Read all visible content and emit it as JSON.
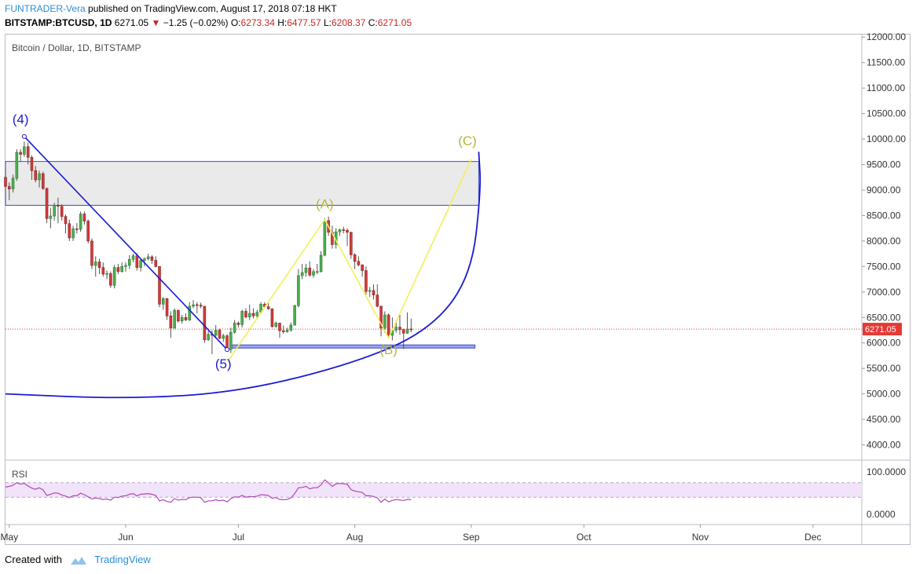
{
  "header": {
    "author": "FUNTRADER-Vera",
    "published": "published on TradingView.com, August 17, 2018 07:18 HKT",
    "symbol": "BITSTAMP:BTCUSD, 1D",
    "last": "6271.05",
    "change": "−1.25 (−0.02%)",
    "o_label": "O:",
    "o_value": "6273.34",
    "h_label": "H:",
    "h_value": "6477.57",
    "l_label": "L:",
    "l_value": "6208.37",
    "c_label": "C:",
    "c_value": "6271.05"
  },
  "pane_title": "Bitcoin / Dollar, 1D, BITSTAMP",
  "rsi_label": "RSI",
  "footer": {
    "created_with": "Created with",
    "brand": "TradingView"
  },
  "colors": {
    "up": "#4caf50",
    "down": "#d03c3c",
    "wick": "#555555",
    "zone_fill": "#e8e8e8",
    "zone_border": "#3b4cc8",
    "wave_blue": "#1a1ad6",
    "wave_yellow": "#f2ef5a",
    "label_yellow": "#b5b53a",
    "rsi_line": "#b04ab5",
    "rsi_band": "#f1e3fa",
    "price_tag": "#e53935"
  },
  "chart_data": {
    "type": "candlestick",
    "title": "Bitcoin / Dollar, 1D, BITSTAMP",
    "y_ticks": [
      "12000.00",
      "11500.00",
      "11000.00",
      "10500.00",
      "10000.00",
      "9500.00",
      "9000.00",
      "8500.00",
      "8000.00",
      "7500.00",
      "7000.00",
      "6500.00",
      "6000.00",
      "5500.00",
      "5000.00",
      "4500.00",
      "4000.00"
    ],
    "ylim": [
      3700,
      12050
    ],
    "x_ticks": [
      "May",
      "Jun",
      "Jul",
      "Aug",
      "Sep",
      "Oct",
      "Nov",
      "Dec"
    ],
    "x_tick_dates": [
      "2018-05-01",
      "2018-06-01",
      "2018-07-01",
      "2018-08-01",
      "2018-09-01",
      "2018-10-01",
      "2018-11-01",
      "2018-12-01"
    ],
    "xlim_dates": [
      "2018-04-30",
      "2018-12-14"
    ],
    "last_price": 6271.05,
    "candles": [
      [
        "2018-04-30",
        9250,
        9400,
        8900,
        9070
      ],
      [
        "2018-05-01",
        9070,
        9150,
        8800,
        9020
      ],
      [
        "2018-05-02",
        9020,
        9300,
        8950,
        9230
      ],
      [
        "2018-05-03",
        9230,
        9800,
        9180,
        9740
      ],
      [
        "2018-05-04",
        9740,
        9800,
        9550,
        9700
      ],
      [
        "2018-05-05",
        9700,
        9950,
        9650,
        9850
      ],
      [
        "2018-05-06",
        9850,
        9930,
        9500,
        9640
      ],
      [
        "2018-05-07",
        9640,
        9680,
        9200,
        9380
      ],
      [
        "2018-05-08",
        9380,
        9470,
        9150,
        9200
      ],
      [
        "2018-05-09",
        9200,
        9380,
        9050,
        9320
      ],
      [
        "2018-05-10",
        9320,
        9360,
        9000,
        9030
      ],
      [
        "2018-05-11",
        9030,
        9050,
        8350,
        8440
      ],
      [
        "2018-05-12",
        8440,
        8650,
        8250,
        8490
      ],
      [
        "2018-05-13",
        8490,
        8750,
        8400,
        8700
      ],
      [
        "2018-05-14",
        8700,
        8850,
        8350,
        8680
      ],
      [
        "2018-05-15",
        8680,
        8720,
        8400,
        8480
      ],
      [
        "2018-05-16",
        8480,
        8520,
        8150,
        8340
      ],
      [
        "2018-05-17",
        8340,
        8420,
        8000,
        8060
      ],
      [
        "2018-05-18",
        8060,
        8300,
        8000,
        8240
      ],
      [
        "2018-05-19",
        8240,
        8350,
        8150,
        8230
      ],
      [
        "2018-05-20",
        8230,
        8580,
        8180,
        8530
      ],
      [
        "2018-05-21",
        8530,
        8580,
        8320,
        8390
      ],
      [
        "2018-05-22",
        8390,
        8420,
        7950,
        8000
      ],
      [
        "2018-05-23",
        8000,
        8050,
        7450,
        7520
      ],
      [
        "2018-05-24",
        7520,
        7700,
        7300,
        7590
      ],
      [
        "2018-05-25",
        7590,
        7650,
        7350,
        7480
      ],
      [
        "2018-05-26",
        7480,
        7580,
        7300,
        7350
      ],
      [
        "2018-05-27",
        7350,
        7420,
        7250,
        7360
      ],
      [
        "2018-05-28",
        7360,
        7400,
        7080,
        7130
      ],
      [
        "2018-05-29",
        7130,
        7530,
        7070,
        7480
      ],
      [
        "2018-05-30",
        7480,
        7550,
        7350,
        7400
      ],
      [
        "2018-05-31",
        7400,
        7580,
        7380,
        7500
      ],
      [
        "2018-06-01",
        7500,
        7580,
        7400,
        7520
      ],
      [
        "2018-06-02",
        7520,
        7720,
        7450,
        7640
      ],
      [
        "2018-06-03",
        7640,
        7750,
        7580,
        7710
      ],
      [
        "2018-06-04",
        7710,
        7760,
        7420,
        7480
      ],
      [
        "2018-06-05",
        7480,
        7660,
        7400,
        7620
      ],
      [
        "2018-06-06",
        7620,
        7680,
        7500,
        7650
      ],
      [
        "2018-06-07",
        7650,
        7750,
        7620,
        7690
      ],
      [
        "2018-06-08",
        7690,
        7720,
        7550,
        7620
      ],
      [
        "2018-06-09",
        7620,
        7700,
        7480,
        7500
      ],
      [
        "2018-06-10",
        7500,
        7500,
        6700,
        6760
      ],
      [
        "2018-06-11",
        6760,
        6900,
        6650,
        6870
      ],
      [
        "2018-06-12",
        6870,
        6880,
        6450,
        6530
      ],
      [
        "2018-06-13",
        6530,
        6620,
        6100,
        6290
      ],
      [
        "2018-06-14",
        6290,
        6680,
        6280,
        6640
      ],
      [
        "2018-06-15",
        6640,
        6650,
        6400,
        6430
      ],
      [
        "2018-06-16",
        6430,
        6550,
        6380,
        6500
      ],
      [
        "2018-06-17",
        6500,
        6580,
        6430,
        6450
      ],
      [
        "2018-06-18",
        6450,
        6800,
        6430,
        6720
      ],
      [
        "2018-06-19",
        6720,
        6840,
        6680,
        6750
      ],
      [
        "2018-06-20",
        6750,
        6800,
        6580,
        6740
      ],
      [
        "2018-06-21",
        6740,
        6790,
        6680,
        6720
      ],
      [
        "2018-06-22",
        6720,
        6720,
        6000,
        6060
      ],
      [
        "2018-06-23",
        6060,
        6230,
        6040,
        6170
      ],
      [
        "2018-06-24",
        6170,
        6250,
        5780,
        6150
      ],
      [
        "2018-06-25",
        6150,
        6350,
        6100,
        6250
      ],
      [
        "2018-06-26",
        6250,
        6280,
        6070,
        6090
      ],
      [
        "2018-06-27",
        6090,
        6180,
        6020,
        6140
      ],
      [
        "2018-06-28",
        6140,
        6170,
        5850,
        5870
      ],
      [
        "2018-06-29",
        5870,
        6300,
        5800,
        6210
      ],
      [
        "2018-06-30",
        6210,
        6450,
        6180,
        6390
      ],
      [
        "2018-07-01",
        6390,
        6420,
        6300,
        6360
      ],
      [
        "2018-07-02",
        6360,
        6650,
        6300,
        6620
      ],
      [
        "2018-07-03",
        6620,
        6680,
        6480,
        6510
      ],
      [
        "2018-07-04",
        6510,
        6750,
        6450,
        6580
      ],
      [
        "2018-07-05",
        6580,
        6680,
        6480,
        6530
      ],
      [
        "2018-07-06",
        6530,
        6650,
        6480,
        6600
      ],
      [
        "2018-07-07",
        6600,
        6800,
        6570,
        6760
      ],
      [
        "2018-07-08",
        6760,
        6800,
        6700,
        6710
      ],
      [
        "2018-07-09",
        6710,
        6780,
        6650,
        6670
      ],
      [
        "2018-07-10",
        6670,
        6680,
        6300,
        6320
      ],
      [
        "2018-07-11",
        6320,
        6420,
        6300,
        6390
      ],
      [
        "2018-07-12",
        6390,
        6390,
        6100,
        6240
      ],
      [
        "2018-07-13",
        6240,
        6340,
        6180,
        6220
      ],
      [
        "2018-07-14",
        6220,
        6300,
        6200,
        6250
      ],
      [
        "2018-07-15",
        6250,
        6400,
        6220,
        6350
      ],
      [
        "2018-07-16",
        6350,
        6750,
        6340,
        6730
      ],
      [
        "2018-07-17",
        6730,
        7450,
        6700,
        7320
      ],
      [
        "2018-07-18",
        7320,
        7550,
        7250,
        7380
      ],
      [
        "2018-07-19",
        7380,
        7550,
        7300,
        7470
      ],
      [
        "2018-07-20",
        7470,
        7600,
        7300,
        7330
      ],
      [
        "2018-07-21",
        7330,
        7450,
        7280,
        7400
      ],
      [
        "2018-07-22",
        7400,
        7550,
        7350,
        7400
      ],
      [
        "2018-07-23",
        7400,
        7800,
        7380,
        7720
      ],
      [
        "2018-07-24",
        7720,
        8450,
        7700,
        8400
      ],
      [
        "2018-07-25",
        8400,
        8480,
        8100,
        8170
      ],
      [
        "2018-07-26",
        8170,
        8300,
        7850,
        7930
      ],
      [
        "2018-07-27",
        7930,
        8250,
        7850,
        8180
      ],
      [
        "2018-07-28",
        8180,
        8240,
        8100,
        8220
      ],
      [
        "2018-07-29",
        8220,
        8280,
        8150,
        8210
      ],
      [
        "2018-07-30",
        8210,
        8250,
        7900,
        8170
      ],
      [
        "2018-07-31",
        8170,
        8180,
        7650,
        7730
      ],
      [
        "2018-08-01",
        7730,
        7760,
        7450,
        7600
      ],
      [
        "2018-08-02",
        7600,
        7700,
        7500,
        7530
      ],
      [
        "2018-08-03",
        7530,
        7540,
        7300,
        7420
      ],
      [
        "2018-08-04",
        7420,
        7500,
        6950,
        7010
      ],
      [
        "2018-08-05",
        7010,
        7100,
        6900,
        7030
      ],
      [
        "2018-08-06",
        7030,
        7150,
        6850,
        6940
      ],
      [
        "2018-08-07",
        6940,
        7150,
        6700,
        6720
      ],
      [
        "2018-08-08",
        6720,
        6730,
        6130,
        6290
      ],
      [
        "2018-08-09",
        6290,
        6620,
        6200,
        6550
      ],
      [
        "2018-08-10",
        6550,
        6580,
        6100,
        6150
      ],
      [
        "2018-08-11",
        6150,
        6500,
        6050,
        6250
      ],
      [
        "2018-08-12",
        6250,
        6450,
        6200,
        6310
      ],
      [
        "2018-08-13",
        6310,
        6550,
        6160,
        6260
      ],
      [
        "2018-08-14",
        6260,
        6280,
        5880,
        6190
      ],
      [
        "2018-08-15",
        6190,
        6600,
        6180,
        6270
      ],
      [
        "2018-08-16",
        6273.34,
        6477.57,
        6208.37,
        6271.05
      ]
    ],
    "rsi": {
      "label": "RSI",
      "ticks": [
        "100.0000",
        "0.0000"
      ],
      "band": [
        30,
        70
      ],
      "values": [
        58,
        60,
        63,
        70,
        66,
        68,
        61,
        55,
        52,
        56,
        50,
        35,
        38,
        42,
        41,
        36,
        33,
        29,
        34,
        34,
        41,
        37,
        31,
        25,
        28,
        26,
        24,
        25,
        22,
        30,
        29,
        33,
        34,
        38,
        40,
        34,
        38,
        39,
        40,
        38,
        35,
        20,
        23,
        18,
        16,
        26,
        22,
        24,
        23,
        29,
        30,
        30,
        29,
        16,
        20,
        20,
        23,
        20,
        22,
        17,
        26,
        31,
        30,
        35,
        30,
        32,
        31,
        33,
        37,
        36,
        35,
        27,
        29,
        24,
        23,
        24,
        28,
        40,
        56,
        57,
        60,
        53,
        56,
        56,
        64,
        78,
        70,
        60,
        67,
        68,
        67,
        66,
        51,
        47,
        45,
        43,
        34,
        34,
        32,
        28,
        16,
        25,
        17,
        21,
        24,
        22,
        21,
        24,
        23
      ]
    },
    "drawings": {
      "resistance_zone": {
        "y1": 8700,
        "y2": 9560,
        "x_start": "2018-04-30",
        "x_end": "2018-09-03"
      },
      "support_line": {
        "y": 5930,
        "x_start": "2018-06-29",
        "x_end": "2018-09-02"
      },
      "blue_wave_line": [
        [
          "2018-05-05",
          10050
        ],
        [
          "2018-06-28",
          5870
        ]
      ],
      "yellow_abc_path": [
        [
          "2018-06-28",
          5620
        ],
        [
          "2018-07-24",
          8420
        ],
        [
          "2018-08-10",
          6100
        ],
        [
          "2018-09-01",
          9600
        ]
      ],
      "blue_arc": [
        [
          "2018-04-30",
          5000
        ],
        [
          "2018-06-01",
          4900
        ],
        [
          "2018-07-01",
          5030
        ],
        [
          "2018-08-01",
          5600
        ],
        [
          "2018-08-21",
          6250
        ],
        [
          "2018-09-01",
          7300
        ],
        [
          "2018-09-03",
          9000
        ],
        [
          "2018-09-03",
          9750
        ]
      ],
      "labels": [
        {
          "text": "(4)",
          "date": "2018-05-04",
          "price": 10300,
          "color": "blue"
        },
        {
          "text": "(5)",
          "date": "2018-06-27",
          "price": 5500,
          "color": "blue"
        },
        {
          "text": "(A)",
          "date": "2018-07-24",
          "price": 8640,
          "color": "yellow"
        },
        {
          "text": "(B)",
          "date": "2018-08-10",
          "price": 5780,
          "color": "yellow"
        },
        {
          "text": "(C)",
          "date": "2018-08-31",
          "price": 9880,
          "color": "yellow"
        }
      ]
    }
  }
}
